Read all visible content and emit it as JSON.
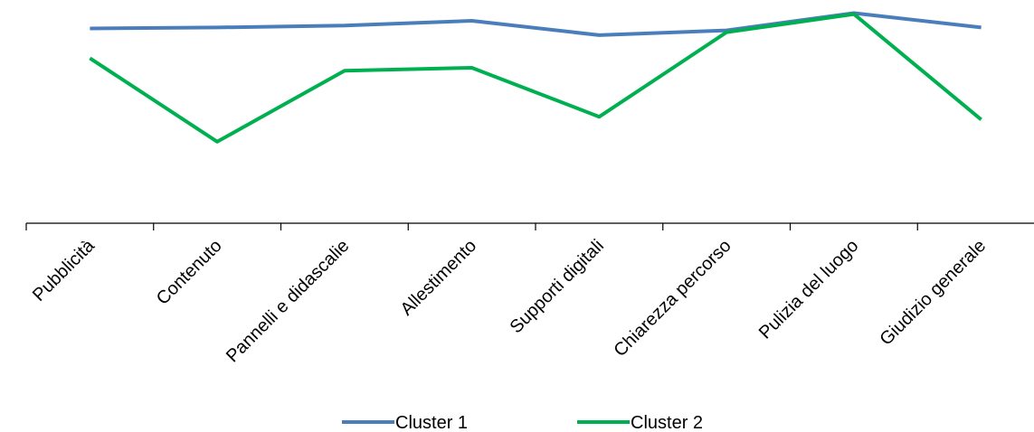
{
  "chart_data": {
    "type": "line",
    "categories": [
      "Pubblicità",
      "Contenuto",
      "Pannelli e didascalie",
      "Allestimento",
      "Supporti digitali",
      "Chiarezza percorso",
      "Pulizia del luogo",
      "Giudizio generale"
    ],
    "series": [
      {
        "name": "Cluster 1",
        "color": "#4a7ebb",
        "values": [
          4.53,
          4.54,
          4.56,
          4.61,
          4.46,
          4.51,
          4.69,
          4.54
        ]
      },
      {
        "name": "Cluster 2",
        "color": "#00b050",
        "values": [
          4.22,
          3.35,
          4.09,
          4.12,
          3.61,
          4.49,
          4.68,
          3.58
        ]
      }
    ],
    "ylim": [
      2.5,
      4.77
    ],
    "grid": false,
    "legend_position": "bottom"
  }
}
